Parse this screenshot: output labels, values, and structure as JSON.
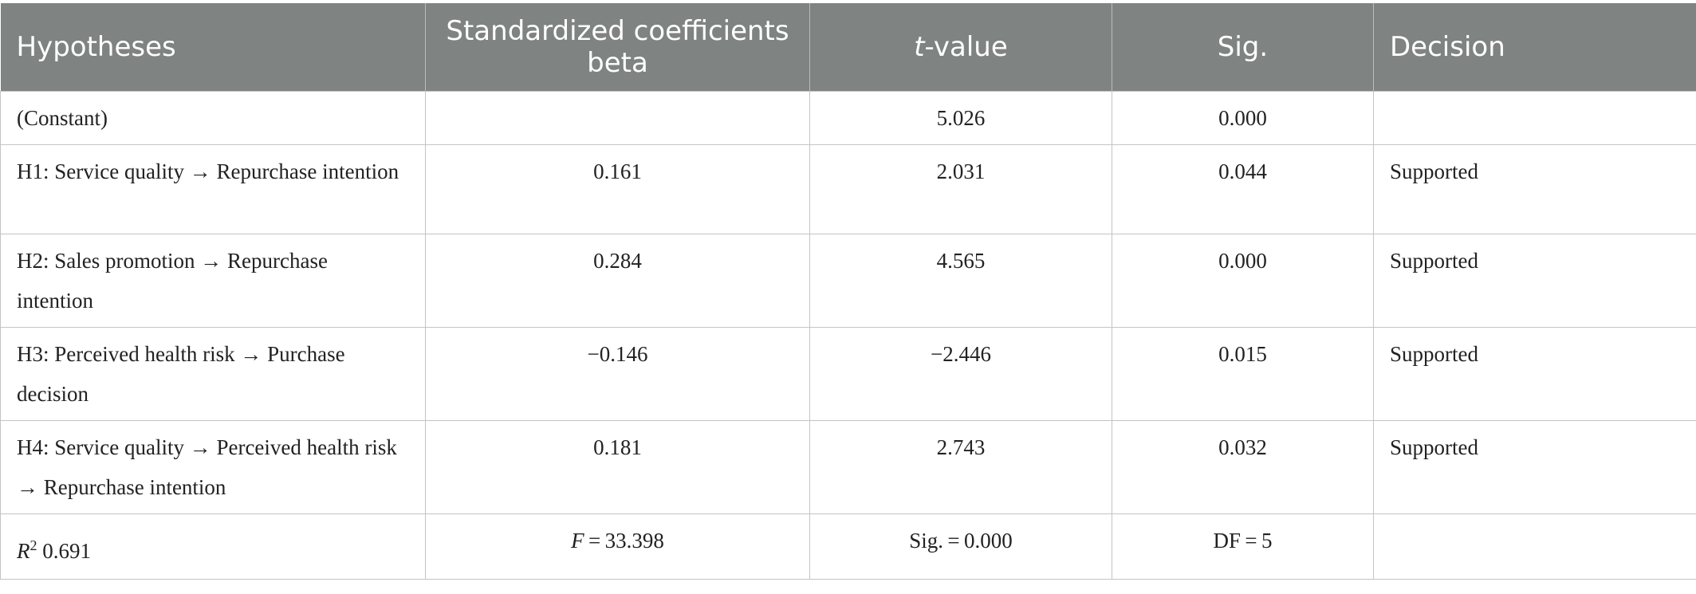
{
  "table": {
    "headers": [
      {
        "text": "Hypotheses"
      },
      {
        "text": "Standardized coefficients beta"
      },
      {
        "prefix_italic": "t",
        "text": "-value"
      },
      {
        "text": "Sig."
      },
      {
        "text": "Decision"
      }
    ],
    "rows": [
      {
        "hypothesis": "(Constant)",
        "beta": "",
        "t_value": "5.026",
        "sig": "0.000",
        "decision": ""
      },
      {
        "hypothesis": "H1: Service quality → Repurchase intention",
        "beta": "0.161",
        "t_value": "2.031",
        "sig": "0.044",
        "decision": "Supported"
      },
      {
        "hypothesis": "H2: Sales promotion → Repurchase intention",
        "beta": "0.284",
        "t_value": "4.565",
        "sig": "0.000",
        "decision": "Supported"
      },
      {
        "hypothesis": "H3: Perceived health risk → Purchase decision",
        "beta": "−0.146",
        "t_value": "−2.446",
        "sig": "0.015",
        "decision": "Supported"
      },
      {
        "hypothesis": "H4: Service quality → Perceived health risk → Repurchase intention",
        "beta": "0.181",
        "t_value": "2.743",
        "sig": "0.032",
        "decision": "Supported"
      }
    ],
    "summary": {
      "r2_symbol": "R",
      "r2_sup": "2",
      "r2_value": " 0.691",
      "f_symbol": "F",
      "f_value": " = 33.398",
      "sig": "Sig. = 0.000",
      "df": "DF = 5"
    }
  }
}
